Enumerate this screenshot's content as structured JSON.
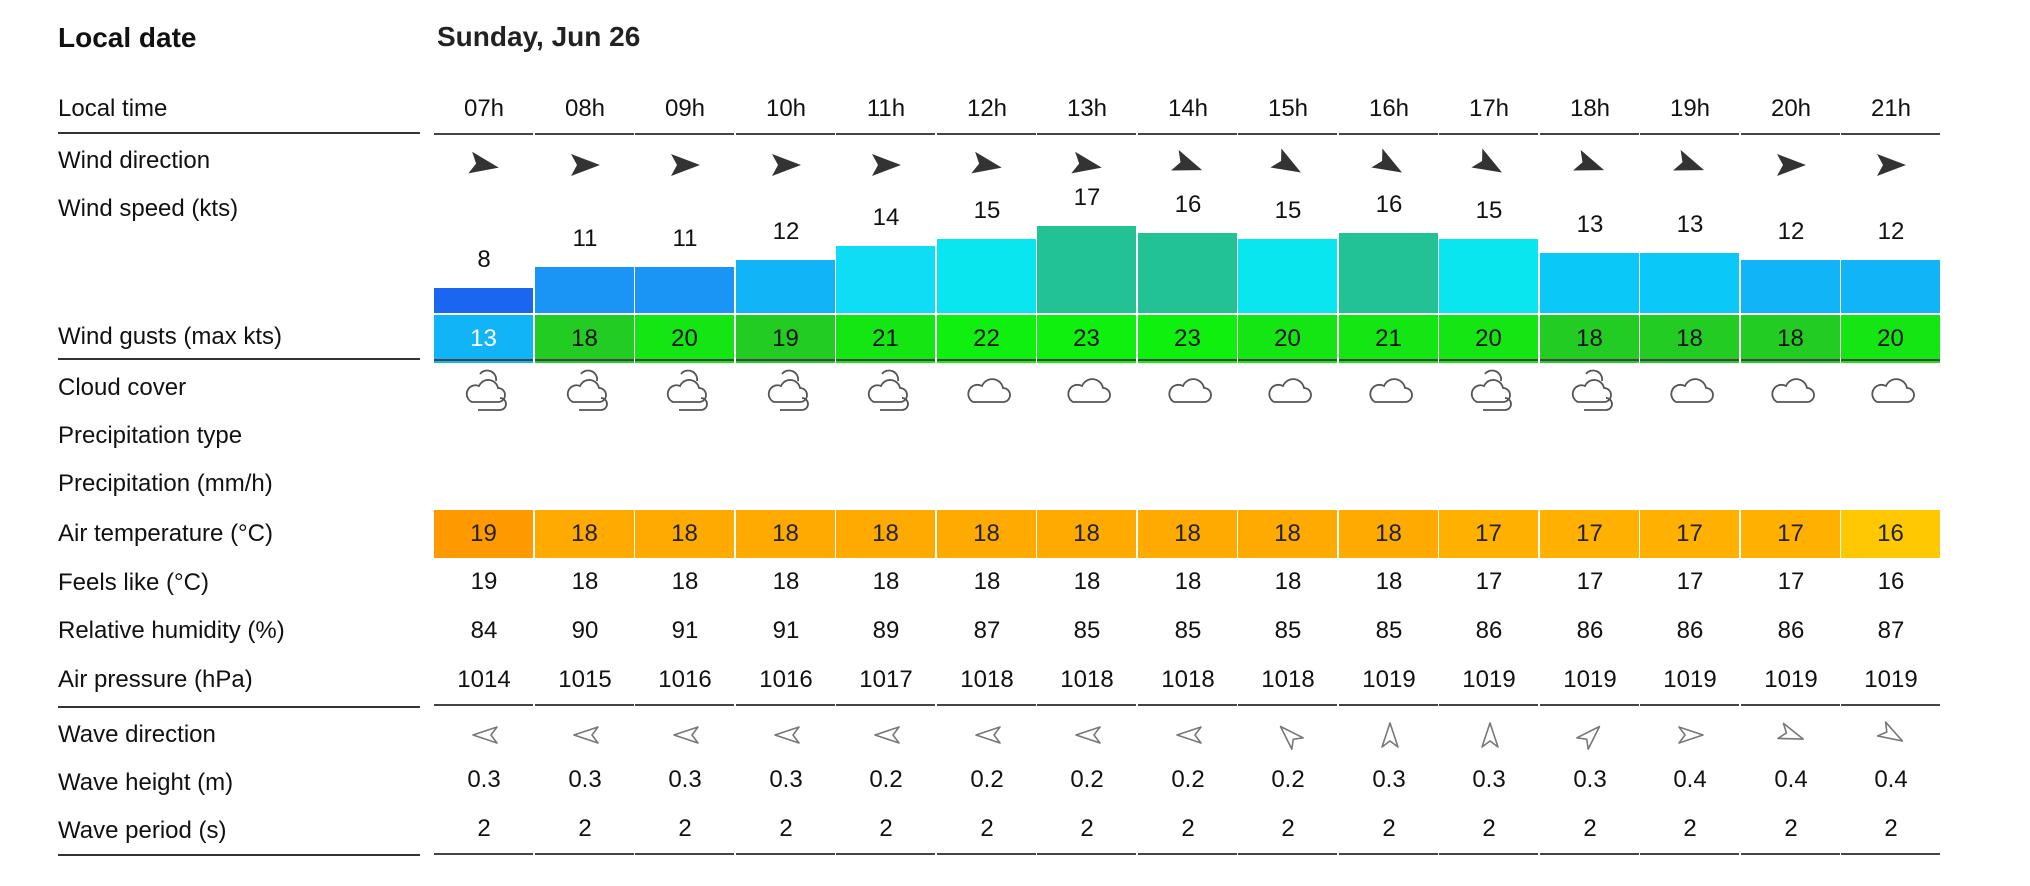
{
  "labels": {
    "local_date": "Local date",
    "local_time": "Local time",
    "wind_direction": "Wind direction",
    "wind_speed": "Wind speed  (kts)",
    "wind_gusts": "Wind gusts  (max kts)",
    "cloud_cover": "Cloud cover",
    "precip_type": "Precipitation type",
    "precipitation": "Precipitation  (mm/h)",
    "air_temp": "Air temperature  (°C)",
    "feels_like": "Feels like  (°C)",
    "humidity": "Relative humidity  (%)",
    "pressure": "Air pressure  (hPa)",
    "wave_direction": "Wave direction",
    "wave_height": "Wave height  (m)",
    "wave_period": "Wave period  (s)"
  },
  "date": "Sunday, Jun 26",
  "hours": [
    "07h",
    "08h",
    "09h",
    "10h",
    "11h",
    "12h",
    "13h",
    "14h",
    "15h",
    "16h",
    "17h",
    "18h",
    "19h",
    "20h",
    "21h"
  ],
  "wind_dir_deg": [
    100,
    90,
    90,
    90,
    90,
    100,
    100,
    110,
    120,
    120,
    120,
    110,
    110,
    90,
    90
  ],
  "wind_speed": [
    "8",
    "11",
    "11",
    "12",
    "14",
    "15",
    "17",
    "16",
    "15",
    "16",
    "15",
    "13",
    "13",
    "12",
    "12"
  ],
  "wind_speed_colors": [
    "#1a66f0",
    "#1a95f5",
    "#1a95f5",
    "#11b4f7",
    "#0fdcf5",
    "#0ae6f0",
    "#22c294",
    "#22c294",
    "#0ae6f0",
    "#22c294",
    "#0ae6f0",
    "#0ac8f8",
    "#0ac8f8",
    "#11b4f7",
    "#11b4f7"
  ],
  "wind_gusts": [
    "13",
    "18",
    "20",
    "19",
    "21",
    "22",
    "23",
    "23",
    "20",
    "21",
    "20",
    "18",
    "18",
    "18",
    "20"
  ],
  "wind_gust_colors": [
    "#11b4f7",
    "#22cc22",
    "#14e614",
    "#22cc22",
    "#14e614",
    "#10f010",
    "#0ef00e",
    "#0ef00e",
    "#14e614",
    "#14e614",
    "#14e614",
    "#22cc22",
    "#22cc22",
    "#22cc22",
    "#14e614"
  ],
  "cloud_icons": [
    "cloud-sun",
    "cloud-sun",
    "cloud-sun",
    "cloud-sun",
    "cloud-sun",
    "cloud",
    "cloud",
    "cloud",
    "cloud",
    "cloud",
    "cloud-sun",
    "cloud-sun",
    "cloud",
    "cloud",
    "cloud"
  ],
  "air_temp": [
    "19",
    "18",
    "18",
    "18",
    "18",
    "18",
    "18",
    "18",
    "18",
    "18",
    "17",
    "17",
    "17",
    "17",
    "16"
  ],
  "air_temp_colors": [
    "#ff9900",
    "#ffaa00",
    "#ffaa00",
    "#ffaa00",
    "#ffaa00",
    "#ffaa00",
    "#ffaa00",
    "#ffaa00",
    "#ffaa00",
    "#ffaa00",
    "#ffb000",
    "#ffb000",
    "#ffb000",
    "#ffb000",
    "#ffc800"
  ],
  "feels_like": [
    "19",
    "18",
    "18",
    "18",
    "18",
    "18",
    "18",
    "18",
    "18",
    "18",
    "17",
    "17",
    "17",
    "17",
    "16"
  ],
  "humidity": [
    "84",
    "90",
    "91",
    "91",
    "89",
    "87",
    "85",
    "85",
    "85",
    "85",
    "86",
    "86",
    "86",
    "86",
    "87"
  ],
  "pressure": [
    "1014",
    "1015",
    "1016",
    "1016",
    "1017",
    "1018",
    "1018",
    "1018",
    "1018",
    "1019",
    "1019",
    "1019",
    "1019",
    "1019",
    "1019"
  ],
  "wave_dir_deg": [
    180,
    180,
    180,
    180,
    180,
    180,
    180,
    180,
    225,
    270,
    270,
    315,
    0,
    20,
    30
  ],
  "wave_height": [
    "0.3",
    "0.3",
    "0.3",
    "0.3",
    "0.2",
    "0.2",
    "0.2",
    "0.2",
    "0.2",
    "0.3",
    "0.3",
    "0.3",
    "0.4",
    "0.4",
    "0.4"
  ],
  "wave_period": [
    "2",
    "2",
    "2",
    "2",
    "2",
    "2",
    "2",
    "2",
    "2",
    "2",
    "2",
    "2",
    "2",
    "2",
    "2"
  ]
}
